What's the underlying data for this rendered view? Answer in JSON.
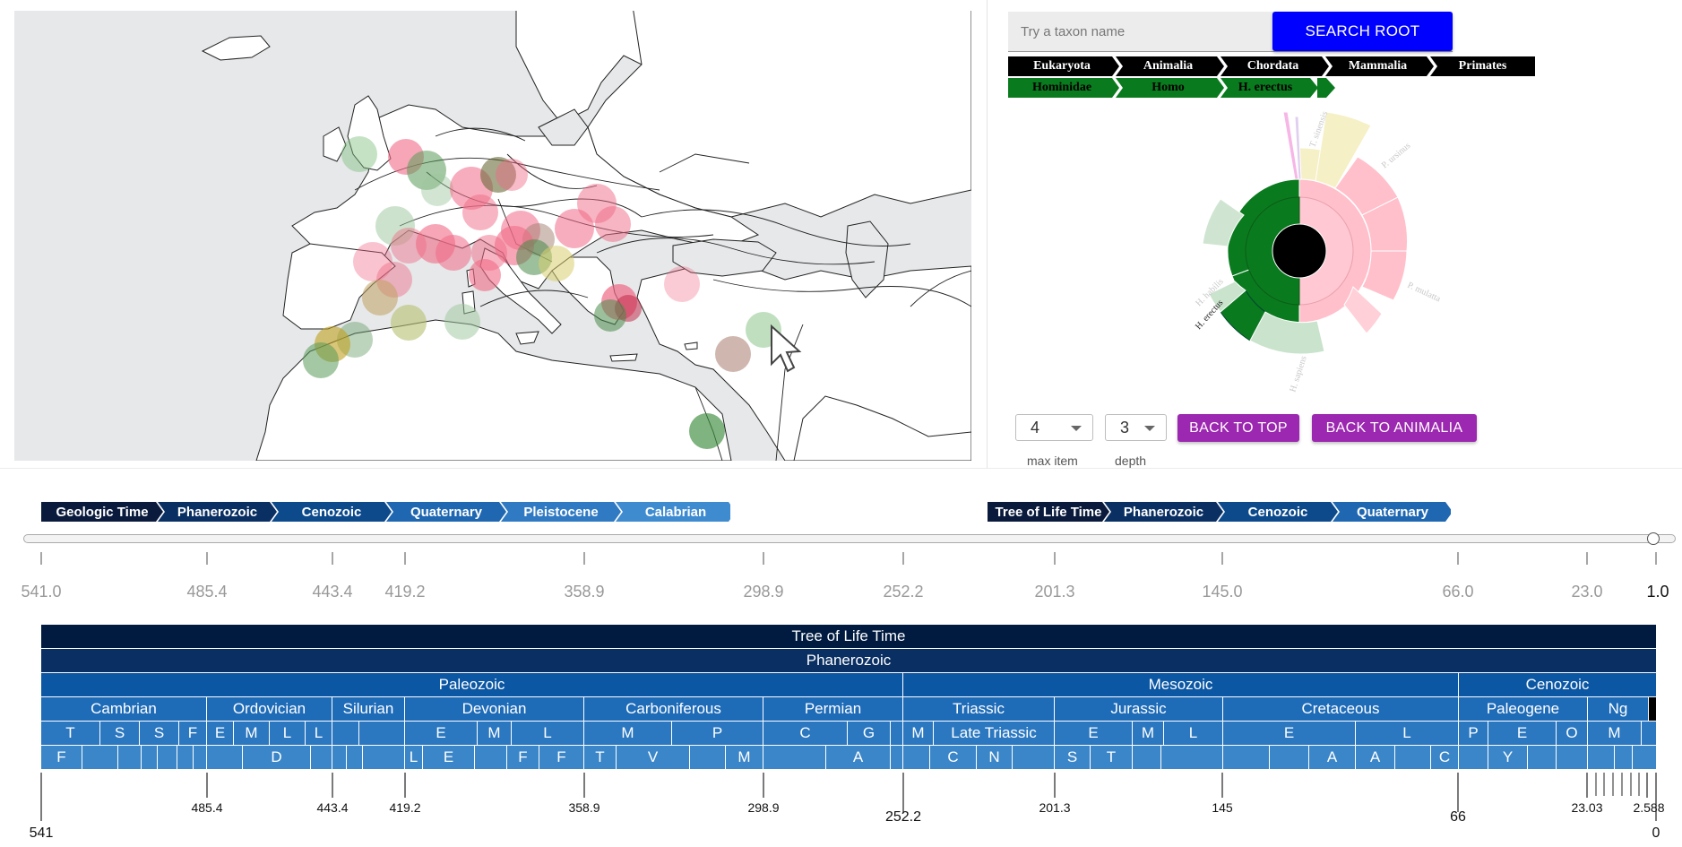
{
  "search": {
    "placeholder": "Try a taxon name",
    "button_label": "SEARCH ROOT"
  },
  "taxonomy_path": {
    "row1": [
      "Eukaryota",
      "Animalia",
      "Chordata",
      "Mammalia",
      "Primates"
    ],
    "row2": [
      "Hominidae",
      "Homo",
      "H. erectus"
    ]
  },
  "sunburst": {
    "labels": [
      "T. sinensis",
      "P. ursinus",
      "P. mulatta",
      "H. habilis",
      "H. erectus",
      "H. sapiens"
    ]
  },
  "controls": {
    "max_item": {
      "value": "4",
      "label": "max item"
    },
    "depth": {
      "value": "3",
      "label": "depth"
    },
    "back_to_top": "BACK TO TOP",
    "back_to_animalia": "BACK TO ANIMALIA"
  },
  "time_breadcrumb_left": [
    "Geologic Time",
    "Phanerozoic",
    "Cenozoic",
    "Quaternary",
    "Pleistocene",
    "Calabrian"
  ],
  "time_breadcrumb_right": [
    "Tree of Life Time",
    "Phanerozoic",
    "Cenozoic",
    "Quaternary"
  ],
  "slider": {
    "value": "1.0"
  },
  "ruler_labels": [
    "541.0",
    "485.4",
    "443.4",
    "419.2",
    "358.9",
    "298.9",
    "252.2",
    "201.3",
    "145.0",
    "66.0",
    "23.0",
    "1.0"
  ],
  "strat": {
    "root": "Tree of Life Time",
    "eon": "Phanerozoic",
    "eras": [
      "Paleozoic",
      "Mesozoic",
      "Cenozoic"
    ],
    "periods": [
      "Cambrian",
      "Ordovician",
      "Silurian",
      "Devonian",
      "Carboniferous",
      "Permian",
      "Triassic",
      "Jurassic",
      "Cretaceous",
      "Paleogene",
      "Ng"
    ],
    "epochs": [
      "T",
      "S",
      "S",
      "F",
      "E",
      "M",
      "L",
      "L",
      "E",
      "M",
      "L",
      "M",
      "P",
      "C",
      "G",
      "M",
      "Late Triassic",
      "E",
      "M",
      "L",
      "E",
      "L",
      "P",
      "E",
      "O",
      "M"
    ],
    "stages": [
      "F",
      "D",
      "L",
      "E",
      "F",
      "F",
      "T",
      "V",
      "M",
      "A",
      "C",
      "N",
      "S",
      "T",
      "A",
      "A",
      "C",
      "Y"
    ]
  },
  "bottom_axis": [
    "541",
    "485.4",
    "443.4",
    "419.2",
    "358.9",
    "298.9",
    "252.2",
    "201.3",
    "145",
    "66",
    "23.03",
    "2.588",
    "0"
  ],
  "colors": {
    "ink": "#000000",
    "tax_green": "#0a7a1e",
    "time_dark": "#0a1a3c",
    "time_mid": "#0d4a8c",
    "time_light": "#3f8bd0",
    "strat_root": "#001a40",
    "strat_mid": "#0c57a3",
    "strat_light": "#3b86c8",
    "search": "#0000ff",
    "purple": "#9c27b0"
  }
}
